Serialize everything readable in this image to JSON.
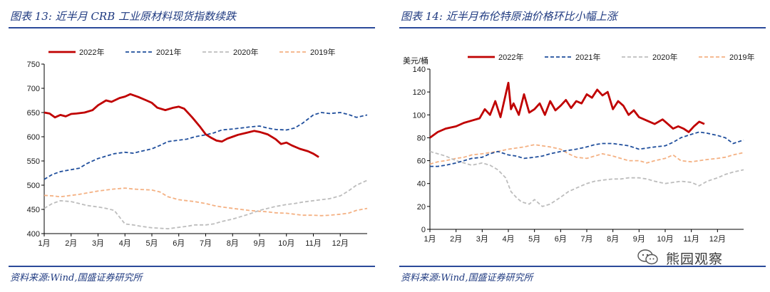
{
  "watermark": {
    "text": "熊园观察",
    "icon": "wechat-icon"
  },
  "panels": [
    {
      "title": "图表 13:  近半月 CRB 工业原材料现货指数续跌",
      "source": "资料来源:Wind,国盛证券研究所"
    },
    {
      "title": "图表 14:  近半月布伦特原油价格环比小幅上涨",
      "source": "资料来源:Wind,国盛证券研究所"
    }
  ],
  "chart_data": [
    {
      "type": "line",
      "title": "近半月 CRB 工业原材料现货指数续跌",
      "ylabel": "",
      "ylim": [
        400,
        750
      ],
      "yticks": [
        400,
        450,
        500,
        550,
        600,
        650,
        700,
        750
      ],
      "xlim": [
        0,
        12
      ],
      "x_tick_labels": [
        "1月",
        "2月",
        "3月",
        "4月",
        "5月",
        "6月",
        "7月",
        "8月",
        "9月",
        "10月",
        "11月",
        "12月"
      ],
      "legend_position": "top",
      "grid": false,
      "series": [
        {
          "name": "2022年",
          "color": "#c00000",
          "style": "solid",
          "x": [
            0,
            0.2,
            0.4,
            0.6,
            0.8,
            1.0,
            1.2,
            1.5,
            1.8,
            2.0,
            2.3,
            2.5,
            2.8,
            3.0,
            3.2,
            3.5,
            3.8,
            4.0,
            4.2,
            4.5,
            4.8,
            5.0,
            5.2,
            5.5,
            5.8,
            6.0,
            6.2,
            6.4,
            6.6,
            6.8,
            7.0,
            7.2,
            7.5,
            7.8,
            8.0,
            8.3,
            8.6,
            8.8,
            9.0,
            9.2,
            9.5,
            9.8,
            10.0,
            10.2
          ],
          "y": [
            650,
            648,
            640,
            645,
            642,
            647,
            648,
            650,
            655,
            665,
            675,
            672,
            680,
            683,
            688,
            682,
            675,
            670,
            660,
            655,
            660,
            662,
            658,
            640,
            620,
            605,
            598,
            592,
            590,
            596,
            600,
            604,
            608,
            612,
            610,
            605,
            595,
            585,
            588,
            582,
            575,
            570,
            565,
            558
          ]
        },
        {
          "name": "2021年",
          "color": "#1f4e9c",
          "style": "dashed",
          "x": [
            0,
            0.3,
            0.6,
            1.0,
            1.3,
            1.6,
            2.0,
            2.3,
            2.6,
            3.0,
            3.3,
            3.6,
            4.0,
            4.3,
            4.6,
            5.0,
            5.3,
            5.6,
            6.0,
            6.3,
            6.6,
            7.0,
            7.3,
            7.6,
            8.0,
            8.3,
            8.6,
            9.0,
            9.3,
            9.6,
            10.0,
            10.3,
            10.6,
            11.0,
            11.3,
            11.6,
            12.0
          ],
          "y": [
            512,
            522,
            528,
            532,
            535,
            545,
            555,
            560,
            565,
            568,
            566,
            570,
            575,
            582,
            590,
            593,
            595,
            600,
            604,
            608,
            614,
            616,
            618,
            620,
            622,
            618,
            615,
            614,
            618,
            628,
            645,
            650,
            648,
            650,
            646,
            640,
            645
          ]
        },
        {
          "name": "2020年",
          "color": "#bdbdbd",
          "style": "dashed",
          "x": [
            0,
            0.3,
            0.6,
            1.0,
            1.3,
            1.6,
            2.0,
            2.3,
            2.6,
            3.0,
            3.3,
            3.6,
            4.0,
            4.3,
            4.6,
            5.0,
            5.3,
            5.6,
            6.0,
            6.3,
            6.6,
            7.0,
            7.3,
            7.6,
            8.0,
            8.3,
            8.6,
            9.0,
            9.3,
            9.6,
            10.0,
            10.3,
            10.6,
            11.0,
            11.3,
            11.6,
            12.0
          ],
          "y": [
            452,
            462,
            468,
            466,
            462,
            458,
            455,
            452,
            448,
            420,
            418,
            415,
            412,
            411,
            410,
            413,
            415,
            418,
            418,
            420,
            425,
            430,
            435,
            440,
            448,
            452,
            456,
            460,
            462,
            465,
            468,
            470,
            472,
            478,
            488,
            500,
            510
          ]
        },
        {
          "name": "2019年",
          "color": "#f4b183",
          "style": "dashed",
          "x": [
            0,
            0.3,
            0.6,
            1.0,
            1.3,
            1.6,
            2.0,
            2.3,
            2.6,
            3.0,
            3.3,
            3.6,
            4.0,
            4.3,
            4.6,
            5.0,
            5.3,
            5.6,
            6.0,
            6.3,
            6.6,
            7.0,
            7.3,
            7.6,
            8.0,
            8.3,
            8.6,
            9.0,
            9.3,
            9.6,
            10.0,
            10.3,
            10.6,
            11.0,
            11.3,
            11.6,
            12.0
          ],
          "y": [
            479,
            478,
            476,
            479,
            481,
            484,
            488,
            490,
            492,
            494,
            492,
            491,
            490,
            486,
            476,
            470,
            468,
            466,
            462,
            458,
            455,
            452,
            450,
            448,
            446,
            445,
            443,
            442,
            440,
            438,
            438,
            437,
            438,
            440,
            442,
            448,
            452
          ]
        }
      ]
    },
    {
      "type": "line",
      "title": "近半月布伦特原油价格环比小幅上涨",
      "ylabel": "美元/桶",
      "ylim": [
        0,
        140
      ],
      "yticks": [
        0,
        20,
        40,
        60,
        80,
        100,
        120,
        140
      ],
      "xlim": [
        0,
        12
      ],
      "x_tick_labels": [
        "1月",
        "2月",
        "3月",
        "4月",
        "5月",
        "6月",
        "7月",
        "8月",
        "9月",
        "10月",
        "11月",
        "12月"
      ],
      "legend_position": "top",
      "grid": false,
      "series": [
        {
          "name": "2022年",
          "color": "#c00000",
          "style": "solid",
          "x": [
            0,
            0.3,
            0.6,
            1.0,
            1.3,
            1.6,
            1.9,
            2.1,
            2.3,
            2.5,
            2.7,
            2.9,
            3.0,
            3.1,
            3.2,
            3.4,
            3.6,
            3.8,
            4.0,
            4.2,
            4.4,
            4.6,
            4.8,
            5.0,
            5.2,
            5.4,
            5.6,
            5.8,
            6.0,
            6.2,
            6.4,
            6.6,
            6.8,
            7.0,
            7.2,
            7.4,
            7.6,
            7.8,
            8.0,
            8.3,
            8.6,
            8.9,
            9.1,
            9.3,
            9.5,
            9.7,
            9.9,
            10.1,
            10.3,
            10.5
          ],
          "y": [
            80,
            85,
            88,
            90,
            93,
            95,
            97,
            105,
            100,
            112,
            98,
            118,
            128,
            105,
            110,
            100,
            118,
            102,
            105,
            110,
            100,
            112,
            104,
            108,
            113,
            106,
            112,
            110,
            118,
            115,
            122,
            117,
            120,
            105,
            112,
            108,
            100,
            104,
            98,
            95,
            92,
            96,
            92,
            88,
            90,
            88,
            85,
            90,
            94,
            92
          ]
        },
        {
          "name": "2021年",
          "color": "#1f4e9c",
          "style": "dashed",
          "x": [
            0,
            0.3,
            0.6,
            1.0,
            1.3,
            1.6,
            2.0,
            2.3,
            2.6,
            3.0,
            3.3,
            3.6,
            4.0,
            4.3,
            4.6,
            5.0,
            5.3,
            5.6,
            6.0,
            6.3,
            6.6,
            7.0,
            7.3,
            7.6,
            8.0,
            8.3,
            8.6,
            9.0,
            9.3,
            9.6,
            10.0,
            10.3,
            10.6,
            11.0,
            11.3,
            11.6,
            12.0
          ],
          "y": [
            55,
            55,
            56,
            58,
            60,
            62,
            63,
            66,
            68,
            65,
            64,
            62,
            63,
            64,
            66,
            68,
            69,
            70,
            72,
            74,
            75,
            75,
            74,
            73,
            70,
            71,
            72,
            73,
            76,
            80,
            83,
            85,
            84,
            82,
            80,
            75,
            78
          ]
        },
        {
          "name": "2020年",
          "color": "#bdbdbd",
          "style": "dashed",
          "x": [
            0,
            0.3,
            0.6,
            1.0,
            1.3,
            1.6,
            2.0,
            2.3,
            2.6,
            2.9,
            3.1,
            3.3,
            3.5,
            3.8,
            4.0,
            4.3,
            4.6,
            5.0,
            5.3,
            5.6,
            6.0,
            6.3,
            6.6,
            7.0,
            7.3,
            7.6,
            8.0,
            8.3,
            8.6,
            9.0,
            9.3,
            9.6,
            10.0,
            10.3,
            10.6,
            11.0,
            11.3,
            11.6,
            12.0
          ],
          "y": [
            68,
            66,
            64,
            60,
            58,
            56,
            58,
            56,
            52,
            45,
            33,
            28,
            24,
            22,
            26,
            20,
            22,
            28,
            33,
            36,
            40,
            42,
            43,
            44,
            44,
            45,
            45,
            44,
            42,
            40,
            41,
            42,
            41,
            38,
            42,
            45,
            48,
            50,
            52
          ]
        },
        {
          "name": "2019年",
          "color": "#f4b183",
          "style": "dashed",
          "x": [
            0,
            0.3,
            0.6,
            1.0,
            1.3,
            1.6,
            2.0,
            2.3,
            2.6,
            3.0,
            3.3,
            3.6,
            4.0,
            4.3,
            4.6,
            5.0,
            5.3,
            5.6,
            6.0,
            6.3,
            6.6,
            7.0,
            7.3,
            7.6,
            8.0,
            8.3,
            8.6,
            9.0,
            9.3,
            9.6,
            10.0,
            10.3,
            10.6,
            11.0,
            11.3,
            11.6,
            12.0
          ],
          "y": [
            57,
            59,
            60,
            62,
            63,
            65,
            66,
            67,
            68,
            70,
            71,
            72,
            74,
            73,
            72,
            70,
            66,
            63,
            62,
            64,
            66,
            64,
            62,
            60,
            60,
            58,
            60,
            62,
            65,
            60,
            59,
            60,
            61,
            62,
            63,
            65,
            67
          ]
        }
      ]
    }
  ]
}
